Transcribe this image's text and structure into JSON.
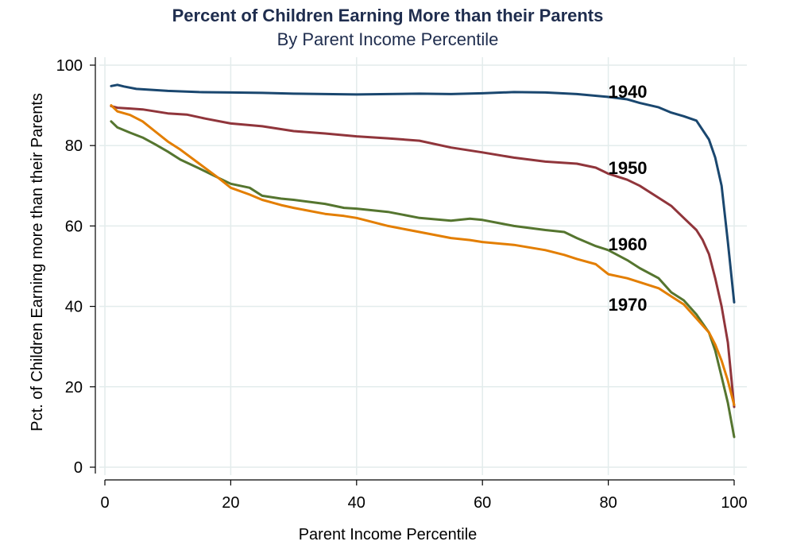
{
  "chart_data": {
    "type": "line",
    "title": "Percent of Children Earning More than their Parents",
    "subtitle": "By Parent Income Percentile",
    "xlabel": "Parent Income Percentile",
    "ylabel": "Pct. of Children Earning more than their Parents",
    "xlim": [
      0,
      100
    ],
    "ylim": [
      0,
      100
    ],
    "xticks": [
      "0",
      "20",
      "40",
      "60",
      "80",
      "100"
    ],
    "yticks": [
      "0",
      "20",
      "40",
      "60",
      "80",
      "100"
    ],
    "grid": true,
    "series": [
      {
        "name": "1940",
        "color": "#1a476f",
        "label_at": [
          80,
          93.5
        ],
        "x": [
          1,
          2,
          3,
          5,
          8,
          10,
          15,
          20,
          25,
          30,
          35,
          40,
          45,
          50,
          55,
          60,
          65,
          70,
          75,
          80,
          83,
          85,
          88,
          90,
          92,
          94,
          96,
          97,
          98,
          99,
          100
        ],
        "y": [
          94.8,
          95.1,
          94.7,
          94.1,
          93.8,
          93.6,
          93.3,
          93.2,
          93.1,
          92.9,
          92.8,
          92.7,
          92.8,
          92.9,
          92.8,
          93.0,
          93.3,
          93.2,
          92.8,
          92.1,
          91.5,
          90.6,
          89.5,
          88.2,
          87.3,
          86.2,
          81.5,
          77.0,
          70.0,
          56.0,
          41.0
        ]
      },
      {
        "name": "1950",
        "color": "#90353b",
        "label_at": [
          80,
          74.5
        ],
        "x": [
          1,
          2,
          4,
          6,
          8,
          10,
          13,
          16,
          20,
          25,
          30,
          35,
          40,
          45,
          50,
          55,
          60,
          65,
          70,
          75,
          78,
          80,
          83,
          85,
          88,
          90,
          92,
          94,
          95,
          96,
          97,
          98,
          99,
          100
        ],
        "y": [
          89.8,
          89.4,
          89.2,
          89.0,
          88.5,
          88.0,
          87.7,
          86.7,
          85.5,
          84.8,
          83.6,
          83.0,
          82.3,
          81.8,
          81.2,
          79.5,
          78.3,
          77.0,
          76.0,
          75.5,
          74.5,
          73.0,
          71.5,
          70.0,
          67.0,
          65.0,
          62.0,
          59.0,
          56.5,
          53.0,
          47.0,
          40.0,
          31.0,
          15.0
        ]
      },
      {
        "name": "1960",
        "color": "#55752f",
        "label_at": [
          80,
          55.5
        ],
        "x": [
          1,
          2,
          4,
          6,
          8,
          10,
          12,
          15,
          18,
          20,
          23,
          25,
          28,
          30,
          35,
          38,
          40,
          45,
          50,
          55,
          58,
          60,
          65,
          70,
          73,
          75,
          78,
          80,
          83,
          85,
          88,
          90,
          92,
          94,
          96,
          97,
          98,
          99,
          100
        ],
        "y": [
          86.0,
          84.5,
          83.2,
          82.0,
          80.3,
          78.5,
          76.5,
          74.3,
          72.0,
          70.5,
          69.5,
          67.5,
          66.8,
          66.5,
          65.5,
          64.5,
          64.3,
          63.5,
          62.0,
          61.3,
          61.8,
          61.5,
          60.0,
          59.0,
          58.5,
          57.0,
          55.0,
          54.0,
          51.5,
          49.5,
          47.0,
          43.5,
          41.5,
          38.0,
          33.5,
          29.0,
          22.5,
          16.0,
          7.5
        ]
      },
      {
        "name": "1970",
        "color": "#e37e00",
        "label_at": [
          80,
          40.5
        ],
        "x": [
          1,
          2,
          4,
          6,
          8,
          10,
          12,
          15,
          18,
          20,
          23,
          25,
          28,
          30,
          35,
          38,
          40,
          45,
          50,
          55,
          58,
          60,
          65,
          70,
          73,
          75,
          78,
          80,
          83,
          85,
          88,
          90,
          92,
          94,
          96,
          97,
          98,
          99,
          100
        ],
        "y": [
          90.0,
          88.5,
          87.6,
          86.0,
          83.5,
          81.0,
          79.0,
          75.5,
          72.0,
          69.5,
          67.8,
          66.5,
          65.2,
          64.5,
          63.0,
          62.5,
          62.0,
          60.0,
          58.5,
          57.0,
          56.5,
          56.0,
          55.3,
          54.0,
          52.8,
          51.8,
          50.5,
          48.0,
          47.0,
          46.0,
          44.5,
          42.5,
          40.5,
          37.0,
          33.5,
          30.5,
          26.5,
          21.5,
          15.5
        ]
      }
    ]
  }
}
